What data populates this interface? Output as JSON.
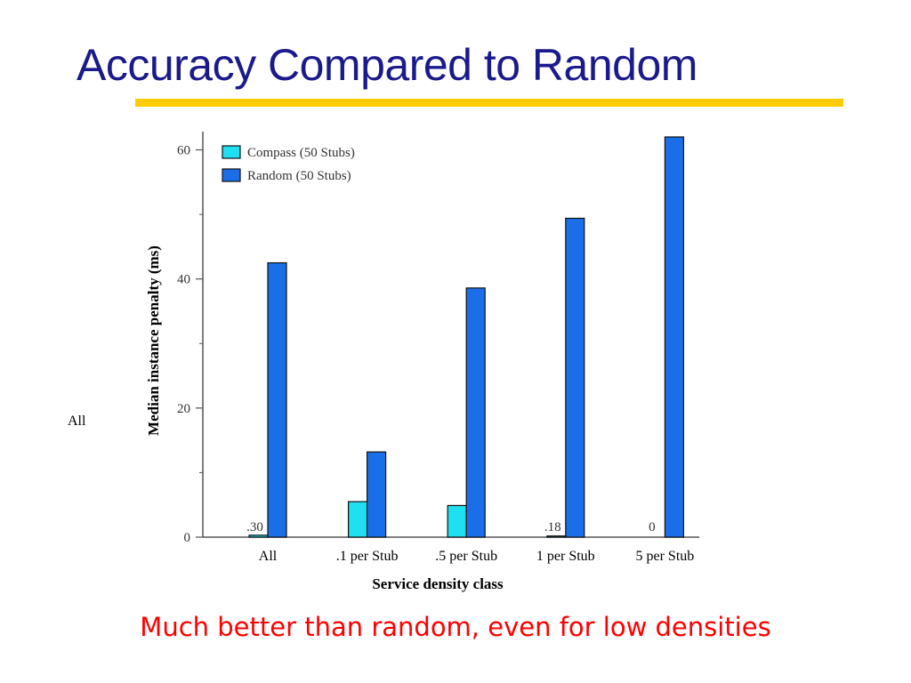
{
  "slide": {
    "title": "Accuracy Compared to Random",
    "side_label": "All",
    "caption": "Much better than random, even for low densities",
    "colors": {
      "title": "#1a1a8c",
      "underline": "#ffcc00",
      "caption": "#ff0000"
    }
  },
  "chart_data": {
    "type": "bar",
    "title": "",
    "xlabel": "Service density class",
    "ylabel": "Median instance penalty (ms)",
    "categories": [
      "All",
      ".1 per Stub",
      ".5 per Stub",
      "1 per Stub",
      "5 per Stub"
    ],
    "series": [
      {
        "name": "Compass (50 Stubs)",
        "values": [
          0.3,
          5.5,
          4.9,
          0.18,
          0
        ],
        "color": "#1ee0f0"
      },
      {
        "name": "Random (50 Stubs)",
        "values": [
          42.5,
          13.2,
          38.6,
          49.4,
          62
        ],
        "color": "#1a6fe8"
      }
    ],
    "bar_labels": [
      ".30",
      "",
      "",
      ".18",
      "0"
    ],
    "ylim": [
      0,
      62
    ],
    "yticks": [
      0,
      20,
      40,
      60
    ],
    "minor_yticks": [
      10,
      30,
      50
    ],
    "grid": false,
    "legend_position": "top-left"
  }
}
